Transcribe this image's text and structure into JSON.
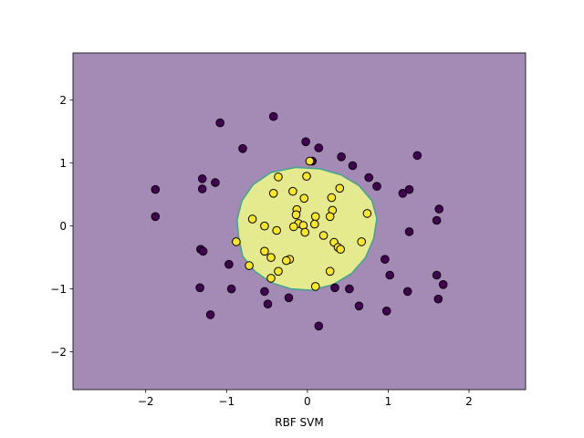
{
  "chart_data": {
    "type": "scatter",
    "title": "",
    "xlabel": "RBF SVM",
    "ylabel": "",
    "xlim": [
      -2.9,
      2.7
    ],
    "ylim": [
      -2.6,
      2.75
    ],
    "xticks": [
      -2,
      -1,
      0,
      1,
      2
    ],
    "yticks": [
      -2,
      -1,
      0,
      1,
      2
    ],
    "xtick_labels": [
      "−2",
      "−1",
      "0",
      "1",
      "2"
    ],
    "ytick_labels": [
      "−2",
      "−1",
      "0",
      "1",
      "2"
    ],
    "grid": false,
    "colors": {
      "background_region": "#a48bb6",
      "decision_region": "#e5ea8e",
      "boundary": "#3ea58e",
      "class_0": "#440154",
      "class_1": "#fde725",
      "marker_edge": "#000000"
    },
    "decision_region": [
      [
        -0.85,
        -0.18
      ],
      [
        -0.8,
        -0.48
      ],
      [
        -0.65,
        -0.72
      ],
      [
        -0.45,
        -0.9
      ],
      [
        -0.2,
        -1.0
      ],
      [
        0.05,
        -1.02
      ],
      [
        0.32,
        -0.93
      ],
      [
        0.55,
        -0.75
      ],
      [
        0.72,
        -0.5
      ],
      [
        0.82,
        -0.2
      ],
      [
        0.86,
        0.12
      ],
      [
        0.8,
        0.4
      ],
      [
        0.64,
        0.64
      ],
      [
        0.42,
        0.81
      ],
      [
        0.15,
        0.91
      ],
      [
        -0.15,
        0.93
      ],
      [
        -0.45,
        0.85
      ],
      [
        -0.67,
        0.66
      ],
      [
        -0.81,
        0.4
      ],
      [
        -0.87,
        0.1
      ]
    ],
    "series": [
      {
        "class": 0,
        "x": [
          -1.88,
          -1.88,
          -1.3,
          -1.3,
          -1.14,
          -1.08,
          -0.8,
          -0.42,
          -0.02,
          0.14,
          0.42,
          0.56,
          0.76,
          0.86,
          1.18,
          1.26,
          1.36,
          -1.32,
          -1.29,
          -0.97,
          -1.33,
          -0.94,
          -1.2,
          -0.53,
          -0.49,
          -0.23,
          0.14,
          0.34,
          0.52,
          0.64,
          0.96,
          1.02,
          0.98,
          1.24,
          1.26,
          1.6,
          1.63,
          1.6,
          1.68,
          1.62,
          0.06
        ],
        "y": [
          0.58,
          0.15,
          0.75,
          0.59,
          0.69,
          1.64,
          1.23,
          1.74,
          1.34,
          1.24,
          1.1,
          0.96,
          0.77,
          0.63,
          0.52,
          0.58,
          1.12,
          -0.37,
          -0.4,
          -0.61,
          -0.98,
          -1.0,
          -1.41,
          -1.04,
          -1.24,
          -1.14,
          -1.59,
          -0.98,
          -1.0,
          -1.27,
          -0.53,
          -0.78,
          -1.35,
          -1.04,
          -0.09,
          0.09,
          0.27,
          -0.78,
          -0.93,
          -1.16,
          1.03
        ]
      },
      {
        "class": 1,
        "x": [
          -0.36,
          -0.42,
          -0.01,
          0.03,
          -0.18,
          -0.13,
          -0.04,
          0.3,
          0.4,
          0.31,
          0.28,
          0.74,
          0.1,
          -0.14,
          -0.11,
          -0.05,
          0.09,
          -0.03,
          -0.68,
          -0.53,
          -0.38,
          -0.22,
          -0.88,
          -0.53,
          -0.17,
          0.2,
          0.33,
          0.38,
          0.41,
          0.67,
          -0.72,
          -0.36,
          -0.45,
          -0.45,
          -0.26,
          0.28,
          0.1
        ],
        "y": [
          0.78,
          0.52,
          0.79,
          1.03,
          0.55,
          0.26,
          0.44,
          0.45,
          0.6,
          0.25,
          0.15,
          0.2,
          0.15,
          0.18,
          0.04,
          0.01,
          0.03,
          -0.1,
          0.11,
          0.0,
          -0.07,
          -0.53,
          -0.25,
          -0.4,
          -0.01,
          -0.15,
          -0.26,
          -0.34,
          -0.37,
          -0.25,
          -0.63,
          -0.72,
          -0.5,
          -0.83,
          -0.55,
          -0.72,
          -0.96
        ]
      }
    ]
  }
}
